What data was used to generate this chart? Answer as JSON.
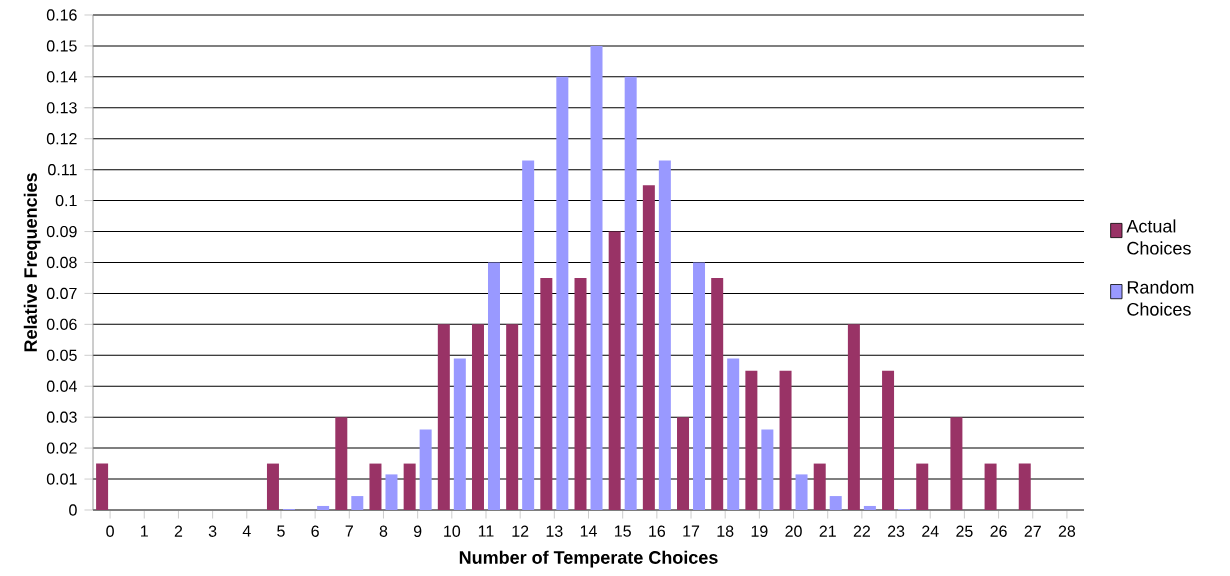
{
  "chart_data": {
    "type": "bar",
    "xlabel": "Number of Temperate Choices",
    "ylabel": "Relative Frequencies",
    "categories": [
      "0",
      "1",
      "2",
      "3",
      "4",
      "5",
      "6",
      "7",
      "8",
      "9",
      "10",
      "11",
      "12",
      "13",
      "14",
      "15",
      "16",
      "17",
      "18",
      "19",
      "20",
      "21",
      "22",
      "23",
      "24",
      "25",
      "26",
      "27",
      "28"
    ],
    "series": [
      {
        "name": "Actual Choices",
        "color": "#993366",
        "values": [
          0.015,
          0,
          0,
          0,
          0,
          0.015,
          0,
          0.03,
          0.015,
          0.015,
          0.06,
          0.06,
          0.06,
          0.075,
          0.075,
          0.09,
          0.105,
          0.03,
          0.075,
          0.045,
          0.045,
          0.015,
          0.06,
          0.045,
          0.015,
          0.03,
          0.015,
          0.015,
          0
        ]
      },
      {
        "name": "Random Choices",
        "color": "#9999ff",
        "values": [
          0,
          0,
          0,
          0,
          0,
          0.0003,
          0.0013,
          0.0045,
          0.0115,
          0.026,
          0.049,
          0.08,
          0.113,
          0.14,
          0.15,
          0.14,
          0.113,
          0.08,
          0.049,
          0.026,
          0.0115,
          0.0045,
          0.0013,
          0.0003,
          0,
          0,
          0,
          0,
          0
        ]
      }
    ],
    "ylim": [
      0,
      0.16
    ],
    "yticks": [
      0,
      0.01,
      0.02,
      0.03,
      0.04,
      0.05,
      0.06,
      0.07,
      0.08,
      0.09,
      0.1,
      0.11,
      0.12,
      0.13,
      0.14,
      0.15,
      0.16
    ],
    "grid": "y",
    "legend": "right"
  }
}
